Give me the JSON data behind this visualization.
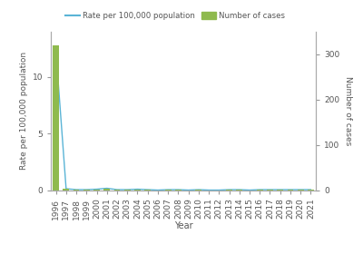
{
  "years": [
    1996,
    1997,
    1998,
    1999,
    2000,
    2001,
    2002,
    2003,
    2004,
    2005,
    2006,
    2007,
    2008,
    2009,
    2010,
    2011,
    2012,
    2013,
    2014,
    2015,
    2016,
    2017,
    2018,
    2019,
    2020,
    2021
  ],
  "rate": [
    12.3,
    0.12,
    0.04,
    0.04,
    0.08,
    0.16,
    0.04,
    0.04,
    0.08,
    0.04,
    0.0,
    0.04,
    0.04,
    0.0,
    0.04,
    0.0,
    0.0,
    0.04,
    0.04,
    0.0,
    0.04,
    0.04,
    0.04,
    0.04,
    0.04,
    0.04
  ],
  "cases": [
    320,
    3,
    1,
    1,
    2,
    4,
    1,
    1,
    2,
    1,
    0,
    1,
    1,
    0,
    1,
    0,
    0,
    1,
    1,
    0,
    1,
    1,
    1,
    1,
    1,
    1
  ],
  "bar_color": "#8fba4e",
  "line_color": "#5ab4d6",
  "background_color": "#ffffff",
  "ylabel_left": "Rate per 100,000 population",
  "ylabel_right": "Number of cases",
  "xlabel": "Year",
  "legend_line_label": "Rate per 100,000 population",
  "legend_bar_label": "Number of cases",
  "ylim_left": [
    0,
    14
  ],
  "ylim_right": [
    0,
    350
  ],
  "yticks_left": [
    0,
    5,
    10
  ],
  "yticks_right": [
    0,
    100,
    200,
    300
  ],
  "spine_color": "#aaaaaa",
  "tick_color": "#999999",
  "text_color": "#555555",
  "figsize": [
    4.0,
    2.91
  ],
  "dpi": 100,
  "xlim": [
    1995.5,
    2021.5
  ]
}
